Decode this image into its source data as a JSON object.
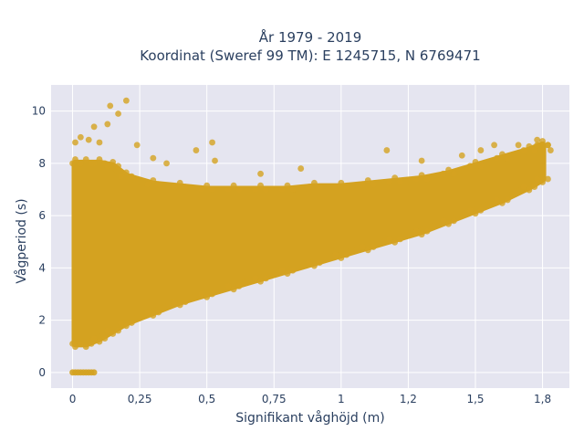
{
  "chart_data": {
    "type": "scatter",
    "title_line1": "År 1979 - 2019",
    "title_line2": "Koordinat (Sweref 99 TM): E 1245715, N 6769471",
    "xlabel": "Signifikant våghöjd (m)",
    "ylabel": "Vågperiod (s)",
    "xlim": [
      -0.08,
      1.85
    ],
    "ylim": [
      -0.6,
      11.0
    ],
    "x_ticks": [
      0,
      0.25,
      0.5,
      0.75,
      1,
      1.25,
      1.5,
      1.75
    ],
    "x_tick_labels": [
      "0",
      "0,25",
      "0,5",
      "0,75",
      "1",
      "1,2",
      "1,5",
      "1,8"
    ],
    "y_ticks": [
      0,
      2,
      4,
      6,
      8,
      10
    ],
    "y_tick_labels": [
      "0",
      "2",
      "4",
      "6",
      "8",
      "10"
    ],
    "grid": true,
    "marker_color": "#d4a220",
    "background_color": "#e5e5f0",
    "band": {
      "x": [
        0.01,
        0.05,
        0.1,
        0.15,
        0.2,
        0.3,
        0.4,
        0.5,
        0.6,
        0.7,
        0.8,
        0.9,
        1.0,
        1.1,
        1.2,
        1.3,
        1.4,
        1.5,
        1.6,
        1.7,
        1.75
      ],
      "lower": [
        1.1,
        1.1,
        1.3,
        1.6,
        1.9,
        2.3,
        2.7,
        3.0,
        3.3,
        3.6,
        3.9,
        4.2,
        4.5,
        4.8,
        5.1,
        5.4,
        5.8,
        6.2,
        6.6,
        7.1,
        7.4
      ],
      "upper": [
        8.0,
        8.0,
        8.0,
        7.9,
        7.5,
        7.2,
        7.1,
        7.0,
        7.0,
        7.0,
        7.0,
        7.1,
        7.1,
        7.2,
        7.3,
        7.4,
        7.6,
        7.9,
        8.2,
        8.5,
        8.7
      ]
    },
    "outliers": [
      {
        "x": 0.01,
        "y": 8.8
      },
      {
        "x": 0.03,
        "y": 9.0
      },
      {
        "x": 0.06,
        "y": 8.9
      },
      {
        "x": 0.08,
        "y": 9.4
      },
      {
        "x": 0.1,
        "y": 8.8
      },
      {
        "x": 0.14,
        "y": 10.2
      },
      {
        "x": 0.17,
        "y": 9.9
      },
      {
        "x": 0.2,
        "y": 10.4
      },
      {
        "x": 0.13,
        "y": 9.5
      },
      {
        "x": 0.24,
        "y": 8.7
      },
      {
        "x": 0.3,
        "y": 8.2
      },
      {
        "x": 0.35,
        "y": 8.0
      },
      {
        "x": 0.46,
        "y": 8.5
      },
      {
        "x": 0.52,
        "y": 8.8
      },
      {
        "x": 0.53,
        "y": 8.1
      },
      {
        "x": 0.7,
        "y": 7.6
      },
      {
        "x": 0.85,
        "y": 7.8
      },
      {
        "x": 1.17,
        "y": 8.5
      },
      {
        "x": 1.3,
        "y": 8.1
      },
      {
        "x": 1.45,
        "y": 8.3
      },
      {
        "x": 1.52,
        "y": 8.5
      },
      {
        "x": 1.57,
        "y": 8.7
      },
      {
        "x": 1.66,
        "y": 8.7
      },
      {
        "x": 1.73,
        "y": 8.9
      },
      {
        "x": 1.77,
        "y": 8.7
      },
      {
        "x": 1.78,
        "y": 8.5
      }
    ],
    "zero_points": [
      {
        "x": 0.0,
        "y": 0
      },
      {
        "x": 0.01,
        "y": 0
      },
      {
        "x": 0.02,
        "y": 0
      },
      {
        "x": 0.03,
        "y": 0
      },
      {
        "x": 0.04,
        "y": 0
      },
      {
        "x": 0.05,
        "y": 0
      },
      {
        "x": 0.06,
        "y": 0
      },
      {
        "x": 0.07,
        "y": 0
      },
      {
        "x": 0.08,
        "y": 0
      }
    ]
  }
}
